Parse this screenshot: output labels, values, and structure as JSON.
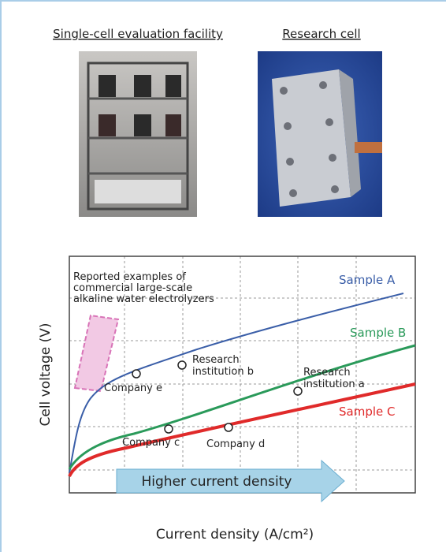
{
  "captions": {
    "left": "Single-cell evaluation facility",
    "right": "Research cell"
  },
  "chart": {
    "y_axis_label": "Cell voltage (V)",
    "x_axis_label": "Current density (A/cm²)",
    "reported_note": [
      "Reported examples of",
      "commercial large-scale",
      "alkaline water electrolyzers"
    ],
    "samples": [
      "Sample A",
      "Sample B",
      "Sample C"
    ],
    "points": {
      "company_e": "Company e",
      "institution_b": [
        "Research",
        "institution b"
      ],
      "institution_a": [
        "Research",
        "institution a"
      ],
      "company_c": "Company c",
      "company_d": "Company d"
    },
    "arrow_text": "Higher current density"
  }
}
